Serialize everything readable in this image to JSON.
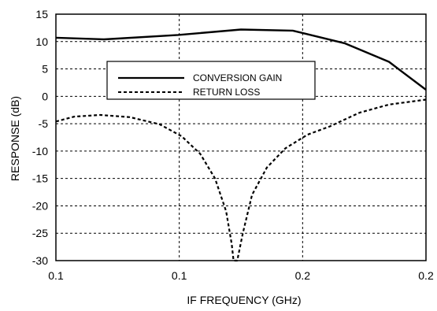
{
  "chart_data": {
    "type": "line",
    "title": "",
    "xlabel": "IF FREQUENCY (GHz)",
    "ylabel": "RESPONSE (dB)",
    "x_ticks": [
      "0.1",
      "0.1",
      "0.2",
      "0.2"
    ],
    "y_ticks": [
      15,
      10,
      5,
      0,
      -5,
      -10,
      -15,
      -20,
      -25,
      -30
    ],
    "ylim": [
      -30,
      15
    ],
    "grid": true,
    "legend_position": "upper-left-center",
    "series": [
      {
        "name": "CONVERSION GAIN",
        "style": "solid",
        "color": "#000000",
        "points": [
          [
            0.0,
            10.7
          ],
          [
            0.13,
            10.4
          ],
          [
            0.33,
            11.2
          ],
          [
            0.5,
            12.2
          ],
          [
            0.64,
            12.0
          ],
          [
            0.78,
            9.7
          ],
          [
            0.9,
            6.3
          ],
          [
            1.0,
            1.2
          ]
        ]
      },
      {
        "name": "RETURN LOSS",
        "style": "dashed",
        "color": "#000000",
        "points": [
          [
            0.0,
            -4.6
          ],
          [
            0.05,
            -3.7
          ],
          [
            0.12,
            -3.4
          ],
          [
            0.2,
            -3.8
          ],
          [
            0.28,
            -5.1
          ],
          [
            0.34,
            -7.3
          ],
          [
            0.39,
            -10.5
          ],
          [
            0.43,
            -15.0
          ],
          [
            0.46,
            -21.0
          ],
          [
            0.475,
            -27.0
          ],
          [
            0.48,
            -30.0
          ],
          [
            0.49,
            -30.0
          ],
          [
            0.505,
            -25.0
          ],
          [
            0.53,
            -18.0
          ],
          [
            0.57,
            -13.0
          ],
          [
            0.62,
            -9.5
          ],
          [
            0.68,
            -7.0
          ],
          [
            0.74,
            -5.5
          ],
          [
            0.82,
            -3.0
          ],
          [
            0.9,
            -1.5
          ],
          [
            1.0,
            -0.6
          ]
        ]
      }
    ]
  }
}
